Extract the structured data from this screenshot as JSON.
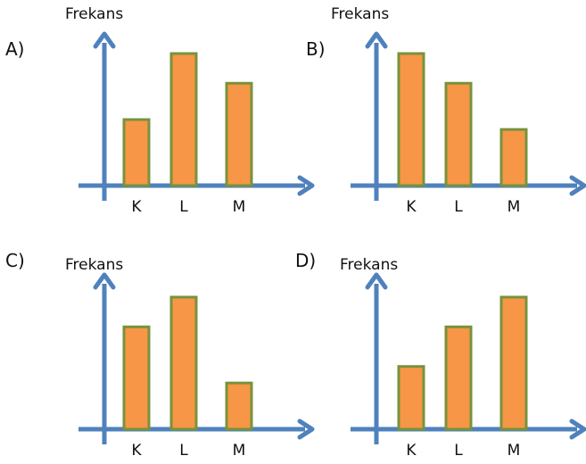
{
  "chart_data": [
    {
      "type": "bar",
      "option_label": "A)",
      "ylabel": "Frekans",
      "categories": [
        "K",
        "L",
        "M"
      ],
      "values": [
        2.0,
        4.0,
        3.1
      ]
    },
    {
      "type": "bar",
      "option_label": "B)",
      "ylabel": "Frekans",
      "categories": [
        "K",
        "L",
        "M"
      ],
      "values": [
        4.0,
        3.1,
        1.7
      ]
    },
    {
      "type": "bar",
      "option_label": "C)",
      "ylabel": "Frekans",
      "categories": [
        "K",
        "L",
        "M"
      ],
      "values": [
        3.1,
        4.0,
        1.4
      ]
    },
    {
      "type": "bar",
      "option_label": "D)",
      "ylabel": "Frekans",
      "categories": [
        "K",
        "L",
        "M"
      ],
      "values": [
        1.9,
        3.1,
        4.0
      ]
    }
  ],
  "colors": {
    "bar_fill": "#F79646",
    "bar_stroke": "#77933C",
    "axis": "#4F81BD"
  }
}
